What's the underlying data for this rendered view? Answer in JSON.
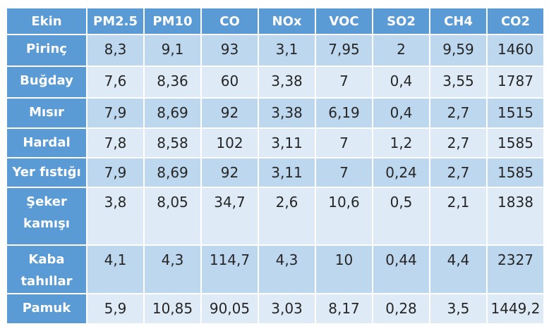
{
  "colors": {
    "header_bg": "#5B9BD5",
    "header_text": "#FFFFFF",
    "row_dark": "#BDD7EE",
    "row_light": "#DEEBF7",
    "cell_text": "#262626",
    "gridline": "#FFFFFF"
  },
  "chart_data": {
    "type": "table",
    "title": "",
    "columns": [
      "Ekin",
      "PM2.5",
      "PM10",
      "CO",
      "NOx",
      "VOC",
      "SO2",
      "CH4",
      "CO2"
    ],
    "rows": [
      {
        "crop": "Pirinç",
        "values": [
          "8,3",
          "9,1",
          "93",
          "3,1",
          "7,95",
          "2",
          "9,59",
          "1460"
        ]
      },
      {
        "crop": "Buğday",
        "values": [
          "7,6",
          "8,36",
          "60",
          "3,38",
          "7",
          "0,4",
          "3,55",
          "1787"
        ]
      },
      {
        "crop": "Mısır",
        "values": [
          "7,9",
          "8,69",
          "92",
          "3,38",
          "6,19",
          "0,4",
          "2,7",
          "1515"
        ]
      },
      {
        "crop": "Hardal",
        "values": [
          "7,8",
          "8,58",
          "102",
          "3,11",
          "7",
          "1,2",
          "2,7",
          "1585"
        ]
      },
      {
        "crop": "Yer fıstığı",
        "values": [
          "7,9",
          "8,69",
          "92",
          "3,11",
          "7",
          "0,24",
          "2,7",
          "1585"
        ]
      },
      {
        "crop": "Şeker\nkamışı",
        "values": [
          "3,8",
          "8,05",
          "34,7",
          "2,6",
          "10,6",
          "0,5",
          "2,1",
          "1838"
        ]
      },
      {
        "crop": "Kaba\ntahıllar",
        "values": [
          "4,1",
          "4,3",
          "114,7",
          "4,3",
          "10",
          "0,44",
          "4,4",
          "2327"
        ]
      },
      {
        "crop": "Pamuk",
        "values": [
          "5,9",
          "10,85",
          "90,05",
          "3,03",
          "8,17",
          "0,28",
          "3,5",
          "1449,2"
        ]
      }
    ]
  }
}
